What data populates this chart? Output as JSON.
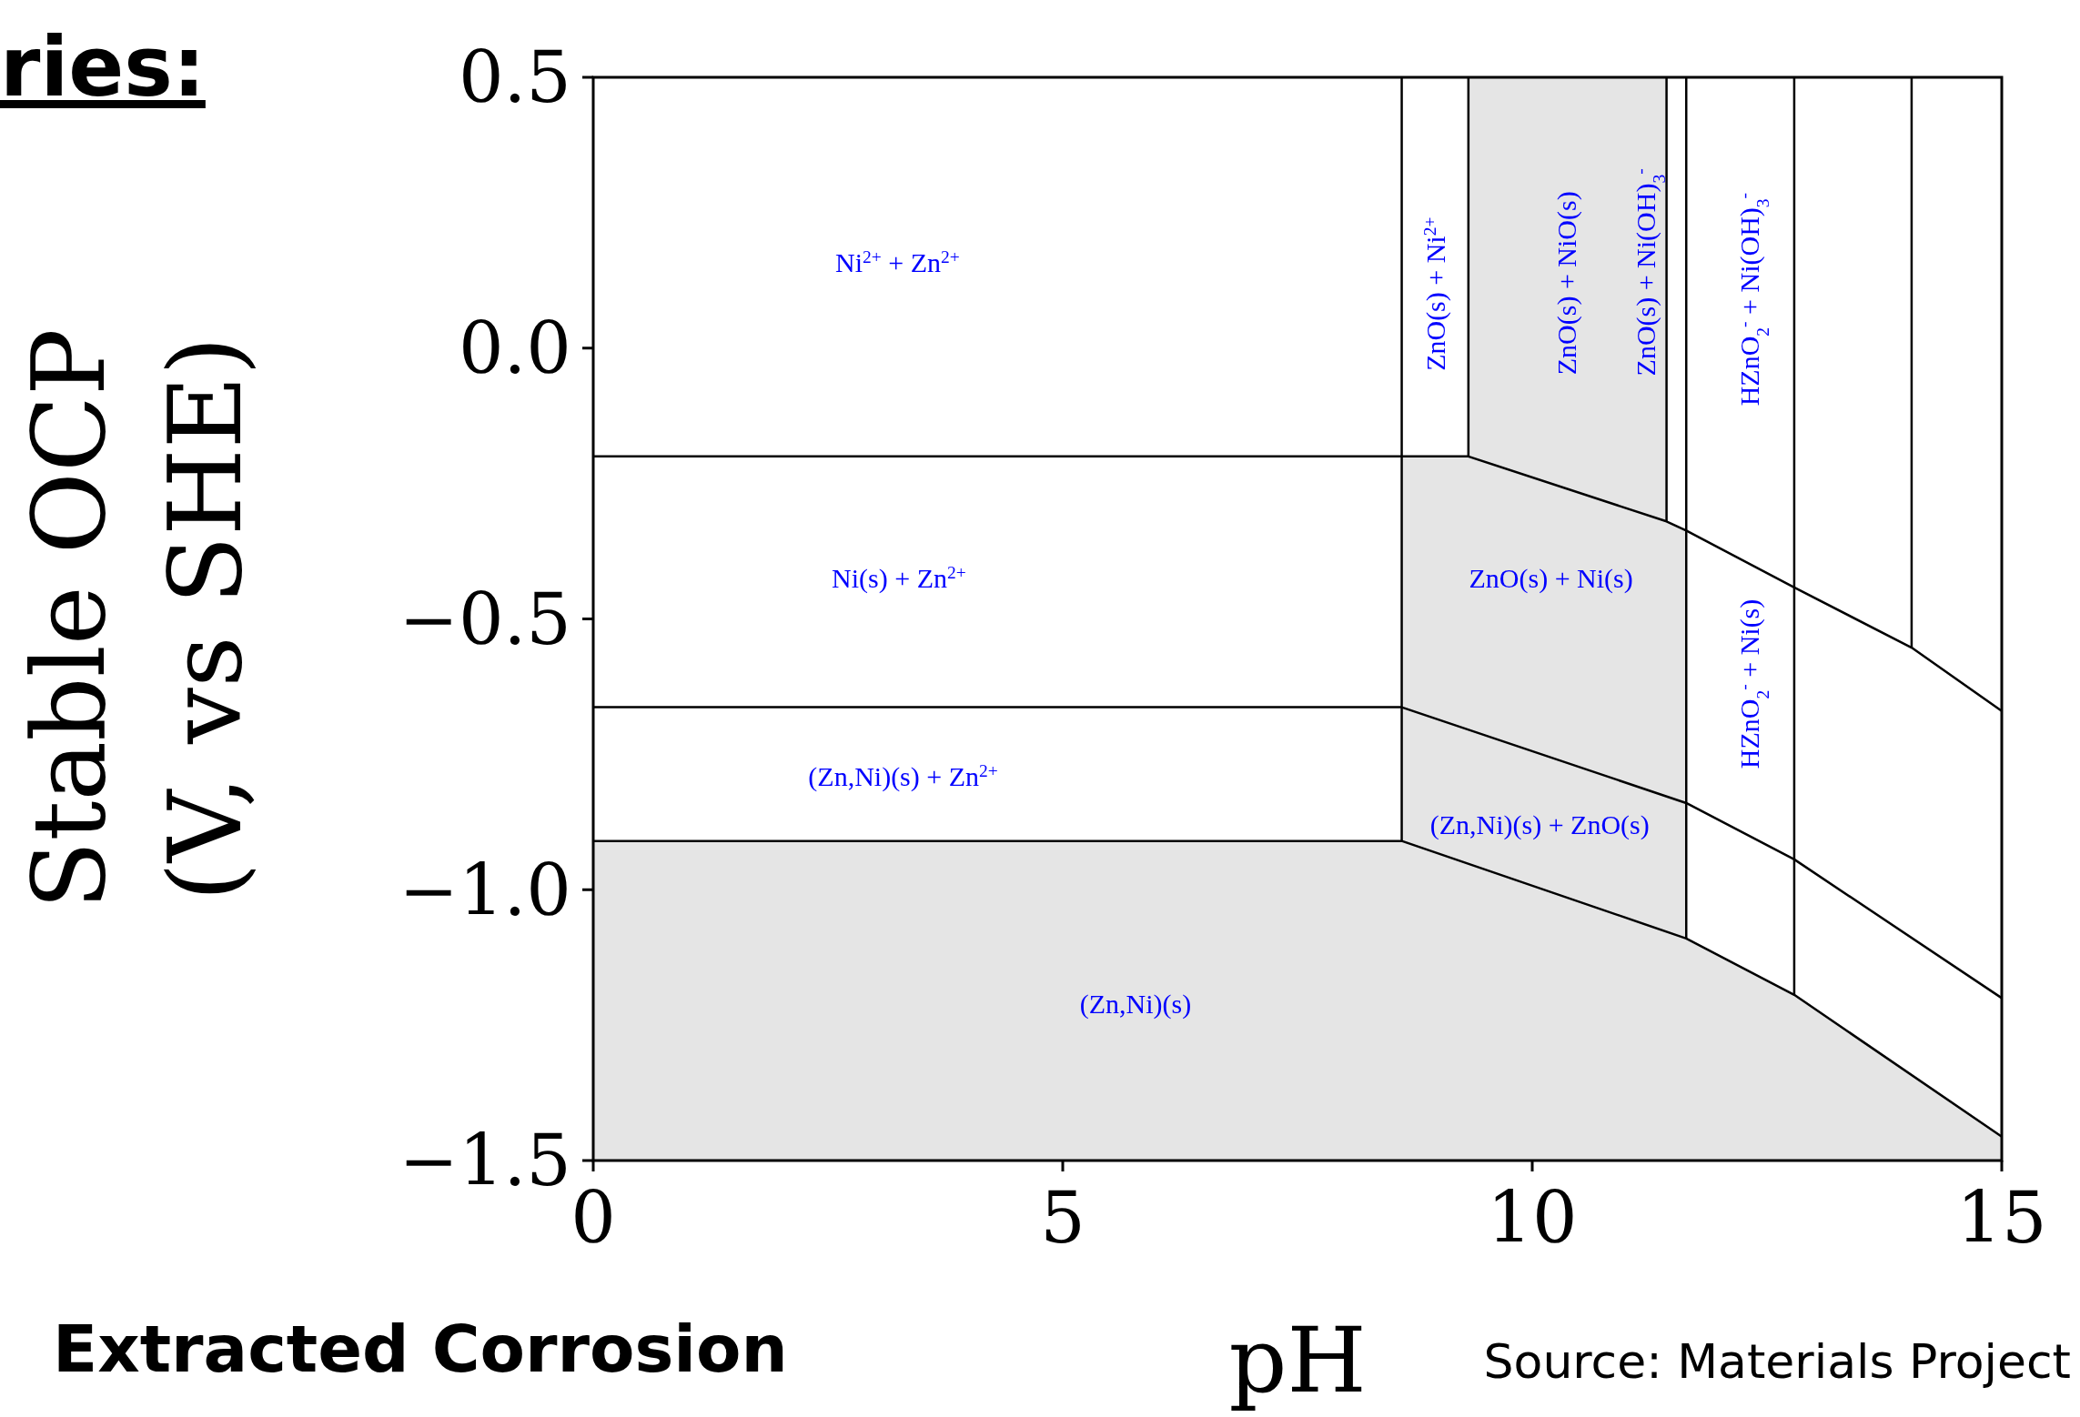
{
  "chart_data": {
    "type": "line",
    "title": "ries:",
    "xlabel": "pH",
    "ylabel": "Stable OCP\n(V, vs SHE)",
    "xlim": [
      0,
      15
    ],
    "xticks": [
      0,
      5,
      10,
      15
    ],
    "ylim": [
      -1.5,
      0.5
    ],
    "yticks": [
      {
        "value": 0.5,
        "label": "0.5"
      },
      {
        "value": 0,
        "label": "0.0"
      },
      {
        "value": -0.5,
        "label": "−0.5"
      },
      {
        "value": -1,
        "label": "−1.0"
      },
      {
        "value": -1.5,
        "label": "−1.5"
      }
    ],
    "marker": "none",
    "line_style": "solid",
    "series": [
      {
        "color": "#000000",
        "x": [
          0,
          8.61,
          9.32,
          11.43,
          11.64,
          12.79,
          14.04,
          15
        ],
        "values": [
          -0.2,
          -0.2,
          -0.2,
          -0.32,
          -0.337,
          -0.442,
          -0.553,
          -0.67
        ]
      },
      {
        "color": "#000000",
        "x": [
          0,
          8.61,
          11.64,
          12.79,
          15
        ],
        "values": [
          -0.663,
          -0.663,
          -0.84,
          -0.944,
          -1.2
        ]
      },
      {
        "color": "#000000",
        "x": [
          0,
          8.61,
          11.64,
          12.79,
          15
        ],
        "values": [
          -0.91,
          -0.91,
          -1.09,
          -1.194,
          -1.456
        ]
      },
      {
        "color": "#000000",
        "x": [
          8.61,
          8.61
        ],
        "values": [
          0.5,
          -0.91
        ]
      },
      {
        "color": "#000000",
        "x": [
          9.32,
          9.32
        ],
        "values": [
          0.5,
          -0.2
        ]
      },
      {
        "color": "#000000",
        "x": [
          11.43,
          11.43
        ],
        "values": [
          0.5,
          -0.32
        ]
      },
      {
        "color": "#000000",
        "x": [
          11.64,
          11.64
        ],
        "values": [
          0.5,
          -1.09
        ]
      },
      {
        "color": "#000000",
        "x": [
          12.79,
          12.79
        ],
        "values": [
          0.5,
          -1.194
        ]
      },
      {
        "color": "#000000",
        "x": [
          14.04,
          14.04
        ],
        "values": [
          0.5,
          -0.553
        ]
      }
    ],
    "annotations": [
      "Ni$^{2+}$ + Zn$^{2+}$",
      "Ni(s) + Zn$^{2+}$",
      "(Zn,Ni)(s) + Zn$^{2+}$",
      "(Zn,Ni)(s)",
      "ZnO(s) + Ni$^{2+}$",
      "ZnO(s) + NiO(s)",
      "ZnO(s) + Ni(OH)$_{3}$$^{-}$",
      "HZnO$_{2}$$^{-}$ + Ni(OH)$_{3}$$^{-}$",
      "ZnO(s) + Ni(s)",
      "(Zn,Ni)(s) + ZnO(s)",
      "HZnO$_{2}$$^{-}$ + Ni(s)",
      "Extracted Corrosion",
      "Source: Materials Project"
    ]
  }
}
